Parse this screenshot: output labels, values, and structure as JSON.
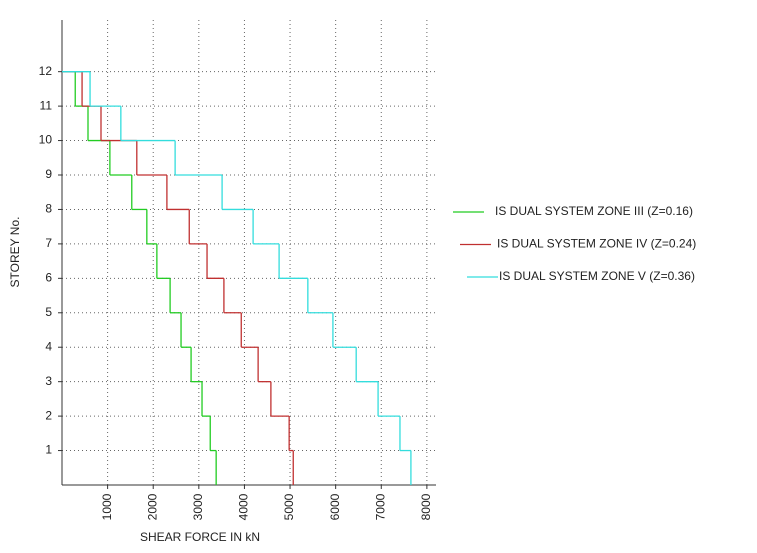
{
  "chart_data": {
    "type": "step",
    "x_label": "SHEAR FORCE IN kN",
    "y_label": "STOREY No.",
    "y": [
      1,
      2,
      3,
      4,
      5,
      6,
      7,
      8,
      9,
      10,
      11,
      12
    ],
    "series": [
      {
        "name": "IS DUAL SYSTEM ZONE III (Z=0.16)",
        "color": "#22cc22",
        "values": [
          3380,
          3250,
          3070,
          2830,
          2610,
          2370,
          2080,
          1860,
          1530,
          1050,
          570,
          290
        ]
      },
      {
        "name": "IS DUAL SYSTEM ZONE IV (Z=0.24)",
        "color": "#c03030",
        "values": [
          5070,
          4980,
          4580,
          4300,
          3930,
          3550,
          3180,
          2790,
          2300,
          1640,
          855,
          440
        ]
      },
      {
        "name": "IS DUAL SYSTEM ZONE V (Z=0.36)",
        "color": "#33dddd",
        "values": [
          7650,
          7410,
          6930,
          6450,
          5940,
          5390,
          4760,
          4190,
          3510,
          2480,
          1290,
          615
        ]
      }
    ],
    "xlim": [
      0,
      8200
    ],
    "xticks": [
      1000,
      2000,
      3000,
      4000,
      5000,
      6000,
      7000,
      8000
    ],
    "ylim": [
      0,
      13.5
    ],
    "yticks": [
      1,
      2,
      3,
      4,
      5,
      6,
      7,
      8,
      9,
      10,
      11,
      12
    ],
    "grid": true,
    "legend": "right"
  }
}
